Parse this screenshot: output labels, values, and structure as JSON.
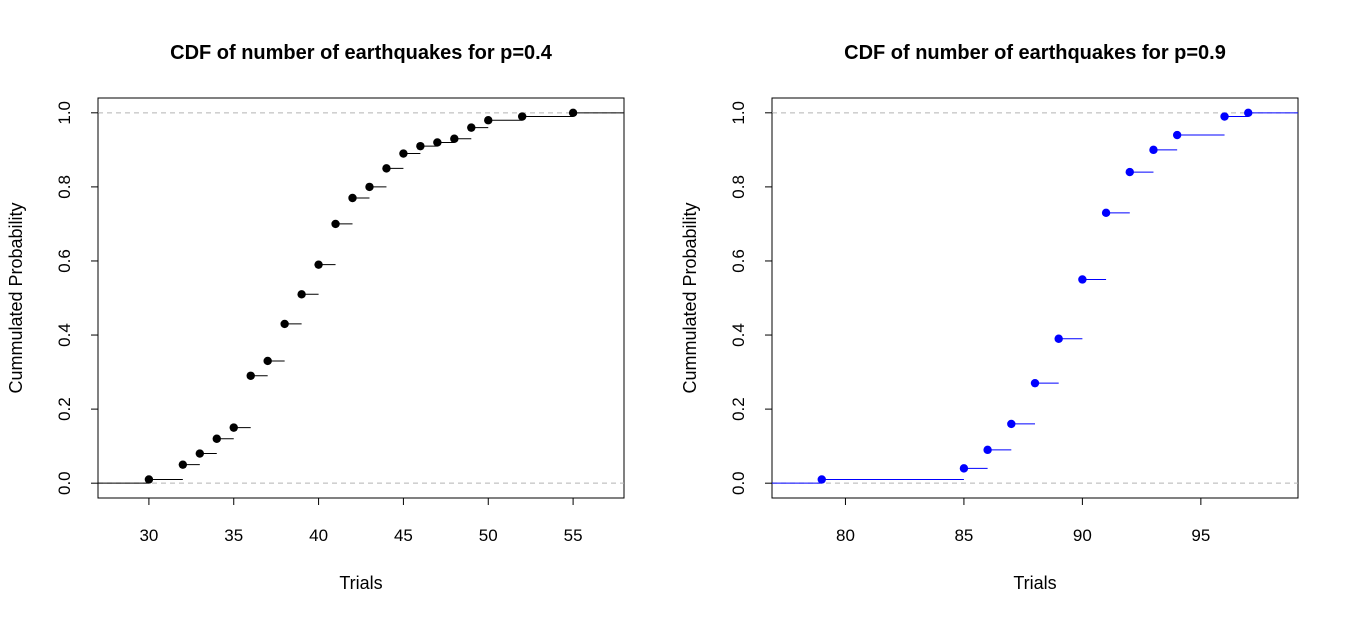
{
  "chart_data": [
    {
      "type": "step",
      "title": "CDF of number of earthquakes for p=0.4",
      "xlabel": "Trials",
      "ylabel": "Cummulated Probability",
      "xlim": [
        27,
        58
      ],
      "ylim": [
        -0.04,
        1.04
      ],
      "x_ticks": [
        30,
        35,
        40,
        45,
        50,
        55
      ],
      "y_ticks": [
        0.0,
        0.2,
        0.4,
        0.6,
        0.8,
        1.0
      ],
      "y_tick_labels": [
        "0.0",
        "0.2",
        "0.4",
        "0.6",
        "0.8",
        "1.0"
      ],
      "reference_lines": [
        0,
        1
      ],
      "color": "#000000",
      "grid": false,
      "series": [
        {
          "x": [
            30,
            32,
            33,
            34,
            35,
            36,
            37,
            38,
            39,
            40,
            41,
            42,
            43,
            44,
            45,
            46,
            47,
            48,
            49,
            50,
            52,
            55
          ],
          "values": [
            0.01,
            0.05,
            0.08,
            0.12,
            0.15,
            0.29,
            0.33,
            0.43,
            0.51,
            0.59,
            0.7,
            0.77,
            0.8,
            0.85,
            0.89,
            0.91,
            0.92,
            0.93,
            0.96,
            0.98,
            0.99,
            1.0
          ]
        }
      ]
    },
    {
      "type": "step",
      "title": "CDF of number of earthquakes for p=0.9",
      "xlabel": "Trials",
      "ylabel": "Cummulated Probability",
      "xlim": [
        76.9,
        99.1
      ],
      "ylim": [
        -0.04,
        1.04
      ],
      "x_ticks": [
        80,
        85,
        90,
        95
      ],
      "y_ticks": [
        0.0,
        0.2,
        0.4,
        0.6,
        0.8,
        1.0
      ],
      "y_tick_labels": [
        "0.0",
        "0.2",
        "0.4",
        "0.6",
        "0.8",
        "1.0"
      ],
      "reference_lines": [
        0,
        1
      ],
      "color": "#0000ff",
      "grid": false,
      "series": [
        {
          "x": [
            79,
            85,
            86,
            87,
            88,
            89,
            90,
            91,
            92,
            93,
            94,
            96,
            97
          ],
          "values": [
            0.01,
            0.04,
            0.09,
            0.16,
            0.27,
            0.39,
            0.55,
            0.73,
            0.84,
            0.9,
            0.94,
            0.99,
            1.0
          ]
        }
      ]
    }
  ]
}
